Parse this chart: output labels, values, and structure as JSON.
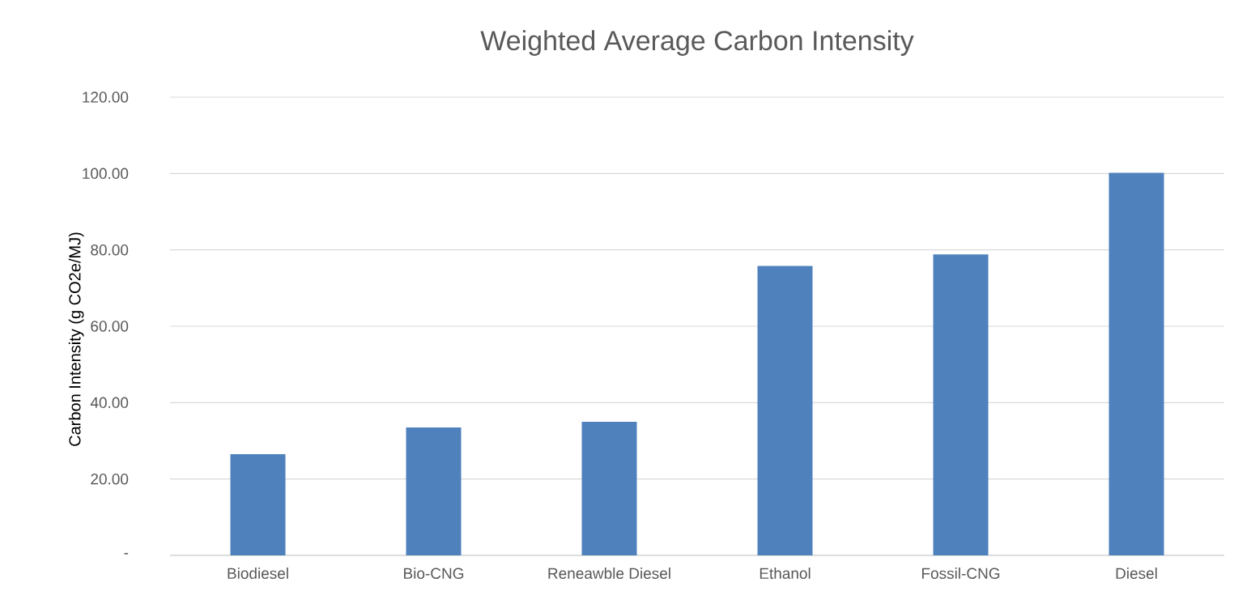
{
  "chart_data": {
    "type": "bar",
    "title": "Weighted Average Carbon Intensity",
    "ylabel": "Carbon Intensity (g CO2e/MJ)",
    "categories": [
      "Biodiesel",
      "Bio-CNG",
      "Reneawble Diesel",
      "Ethanol",
      "Fossil-CNG",
      "Diesel"
    ],
    "values": [
      26.5,
      33.5,
      35.0,
      75.8,
      78.8,
      100.2
    ],
    "color": "#4f81bd",
    "ylim": [
      0,
      120
    ],
    "yticks": [
      {
        "value": 0,
        "label": "-"
      },
      {
        "value": 20,
        "label": "20.00"
      },
      {
        "value": 40,
        "label": "40.00"
      },
      {
        "value": 60,
        "label": "60.00"
      },
      {
        "value": 80,
        "label": "80.00"
      },
      {
        "value": 100,
        "label": "100.00"
      },
      {
        "value": 120,
        "label": "120.00"
      }
    ],
    "grid": "y"
  }
}
